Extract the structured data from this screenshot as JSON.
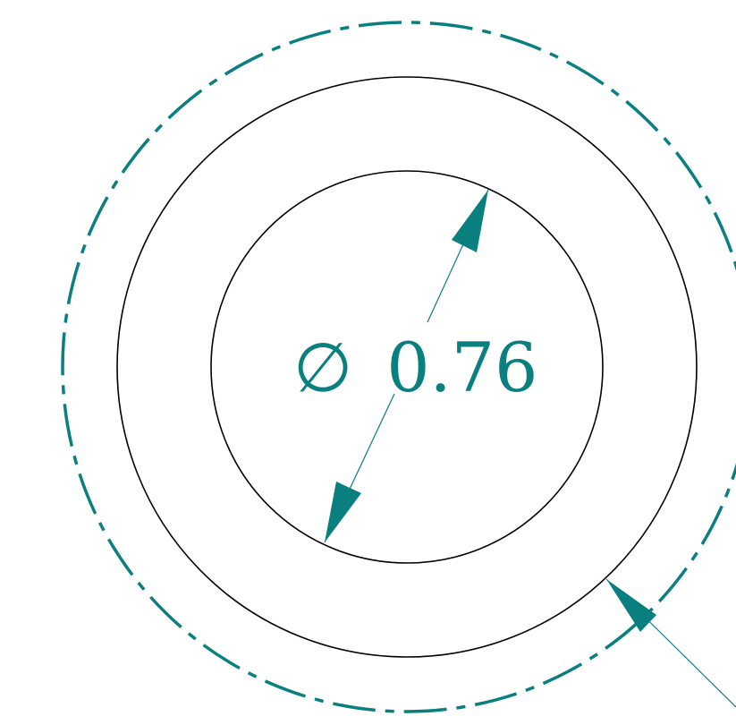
{
  "dimension": {
    "symbol": "∅",
    "value": "0.76"
  },
  "colors": {
    "annotation": "#0a7f7f",
    "geometry": "#000000",
    "background": "#ffffff"
  }
}
